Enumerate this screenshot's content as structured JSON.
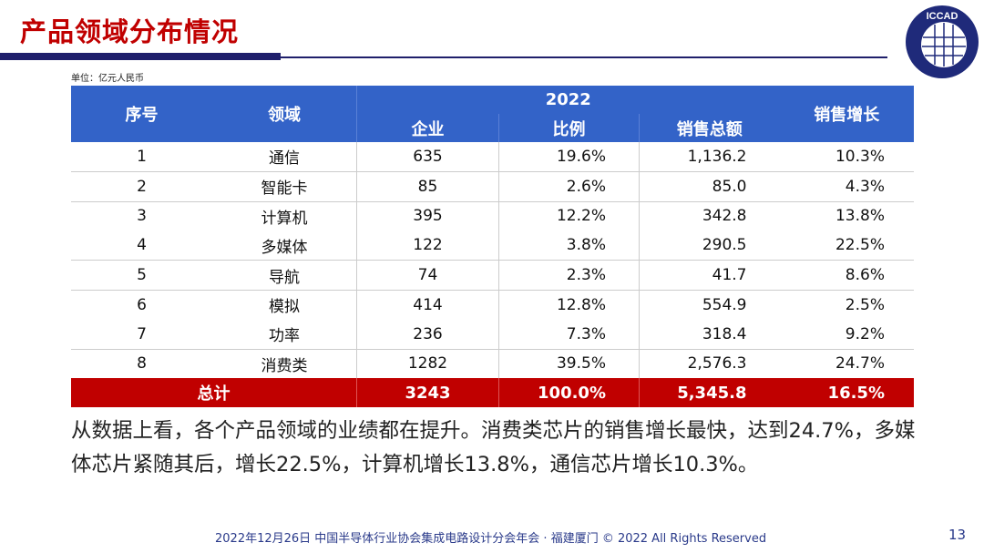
{
  "title": "产品领域分布情况",
  "logo_text": "ICCAD",
  "unit": "单位：亿元人民币",
  "table": {
    "headers": {
      "index": "序号",
      "field": "领域",
      "year": "2022",
      "companies": "企业",
      "ratio": "比例",
      "sales": "销售总额",
      "growth": "销售增长"
    },
    "rows": [
      {
        "index": "1",
        "field": "通信",
        "companies": "635",
        "ratio": "19.6%",
        "sales": "1,136.2",
        "growth": "10.3%"
      },
      {
        "index": "2",
        "field": "智能卡",
        "companies": "85",
        "ratio": "2.6%",
        "sales": "85.0",
        "growth": "4.3%"
      },
      {
        "index": "3",
        "field": "计算机",
        "companies": "395",
        "ratio": "12.2%",
        "sales": "342.8",
        "growth": "13.8%"
      },
      {
        "index": "4",
        "field": "多媒体",
        "companies": "122",
        "ratio": "3.8%",
        "sales": "290.5",
        "growth": "22.5%"
      },
      {
        "index": "5",
        "field": "导航",
        "companies": "74",
        "ratio": "2.3%",
        "sales": "41.7",
        "growth": "8.6%"
      },
      {
        "index": "6",
        "field": "模拟",
        "companies": "414",
        "ratio": "12.8%",
        "sales": "554.9",
        "growth": "2.5%"
      },
      {
        "index": "7",
        "field": "功率",
        "companies": "236",
        "ratio": "7.3%",
        "sales": "318.4",
        "growth": "9.2%"
      },
      {
        "index": "8",
        "field": "消费类",
        "companies": "1282",
        "ratio": "39.5%",
        "sales": "2,576.3",
        "growth": "24.7%"
      }
    ],
    "total": {
      "label": "总计",
      "companies": "3243",
      "ratio": "100.0%",
      "sales": "5,345.8",
      "growth": "16.5%"
    }
  },
  "paragraph": "从数据上看，各个产品领域的业绩都在提升。消费类芯片的销售增长最快，达到24.7%，多媒体芯片紧随其后，增长22.5%，计算机增长13.8%，通信芯片增长10.3%。",
  "footer": "2022年12月26日 中国半导体行业协会集成电路设计分会年会 · 福建厦门 © 2022 All Rights Reserved",
  "page_number": "13",
  "colors": {
    "title": "#c00000",
    "header": "#3363c8",
    "total_row": "#c00000",
    "navy": "#1f1f6b"
  }
}
